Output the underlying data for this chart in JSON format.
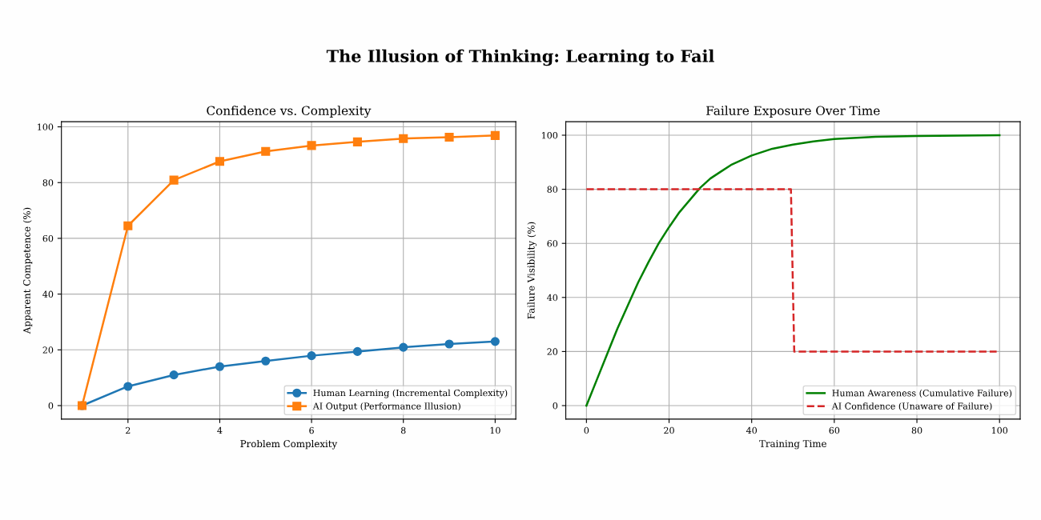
{
  "chart_data": [
    {
      "type": "line",
      "title": "Confidence vs. Complexity",
      "annotations": [
        "The Illusion of Thinking: Learning to Fail"
      ],
      "xlabel": "Problem Complexity",
      "ylabel": "Apparent Competence (%)",
      "x": [
        1,
        2,
        3,
        4,
        5,
        6,
        7,
        8,
        9,
        10
      ],
      "series": [
        {
          "name": "Human Learning (Incremental Complexity)",
          "color": "#1f77b4",
          "marker": "circle",
          "values": [
            0,
            6.9,
            11.0,
            14.0,
            16.0,
            17.9,
            19.4,
            20.9,
            22.1,
            23.0
          ]
        },
        {
          "name": "AI Output (Performance Illusion)",
          "color": "#ff7f0e",
          "marker": "square",
          "values": [
            0,
            64.5,
            80.9,
            87.6,
            91.2,
            93.3,
            94.6,
            95.8,
            96.3,
            96.9
          ]
        }
      ],
      "xlim": [
        0.55,
        10.45
      ],
      "xticks": [
        2,
        4,
        6,
        8,
        10
      ],
      "ylim": [
        -4.85,
        101.85
      ],
      "yticks": [
        0,
        20,
        40,
        60,
        80,
        100
      ],
      "grid": true,
      "legend": "lower right"
    },
    {
      "type": "line",
      "title": "Failure Exposure Over Time",
      "xlabel": "Training Time",
      "ylabel": "Failure Visibility (%)",
      "series": [
        {
          "name": "Human Awareness (Cumulative Failure)",
          "color": "#008000",
          "line_style": "solid",
          "x": [
            0,
            2.5,
            5,
            7.5,
            10,
            12.5,
            15,
            17.5,
            20,
            22.5,
            25,
            27.5,
            30,
            32.5,
            35,
            40,
            45,
            50,
            55,
            60,
            70,
            80,
            100
          ],
          "values": [
            0,
            9.5,
            19,
            28.5,
            37,
            45.5,
            53,
            60,
            66,
            71.5,
            76,
            80.5,
            84,
            86.5,
            89,
            92.5,
            95,
            96.5,
            97.7,
            98.6,
            99.4,
            99.7,
            100
          ]
        },
        {
          "name": "AI Confidence (Unaware of Failure)",
          "color": "#d62728",
          "line_style": "dashed",
          "x": [
            0,
            49.5,
            50.3,
            99.3
          ],
          "values": [
            80,
            80,
            20,
            20
          ]
        }
      ],
      "xlim": [
        -5,
        105
      ],
      "xticks": [
        0,
        20,
        40,
        60,
        80,
        100
      ],
      "ylim": [
        -5,
        105
      ],
      "yticks": [
        0,
        20,
        40,
        60,
        80,
        100
      ],
      "grid": true,
      "legend": "lower right"
    }
  ]
}
